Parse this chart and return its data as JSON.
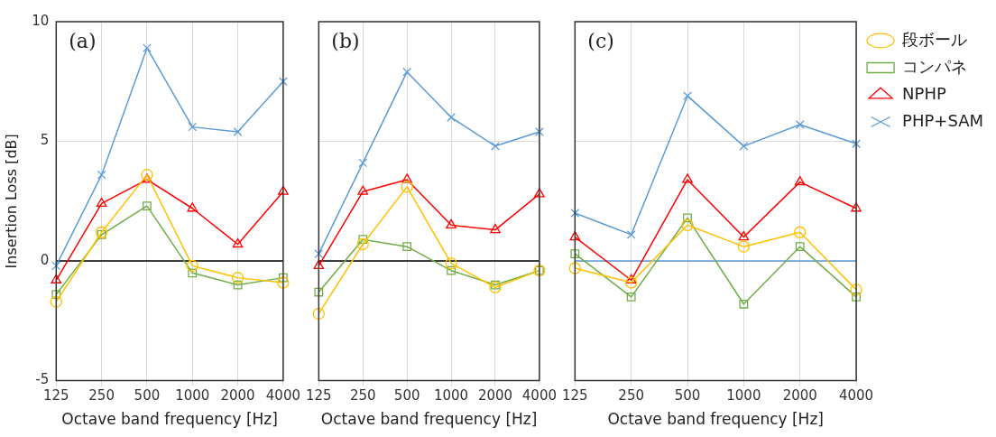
{
  "chart_data": [
    {
      "type": "line",
      "annotations": [
        "(a)"
      ],
      "xlabel": "Octave band frequency [Hz]",
      "ylabel": "Insertion Loss [dB]",
      "categories": [
        "125",
        "250",
        "500",
        "1000",
        "2000",
        "4000"
      ],
      "ylim": [
        -5,
        10
      ],
      "yticks": [
        -5,
        0,
        5,
        10
      ],
      "grid": true,
      "legend": false,
      "ref_lines": [
        {
          "axis": "y",
          "value": 0,
          "color": "#000000"
        }
      ],
      "series": [
        {
          "color": "#ffc000",
          "marker": "circle",
          "values": [
            -1.7,
            1.2,
            3.6,
            -0.2,
            -0.7,
            -0.9
          ]
        },
        {
          "color": "#70ad47",
          "marker": "square",
          "values": [
            -1.4,
            1.1,
            2.3,
            -0.5,
            -1.0,
            -0.7
          ]
        },
        {
          "color": "#ff0000",
          "marker": "triangle",
          "values": [
            -0.8,
            2.4,
            3.4,
            2.2,
            0.7,
            2.9
          ]
        },
        {
          "color": "#5b9bd5",
          "marker": "cross",
          "values": [
            -0.2,
            3.6,
            8.9,
            5.6,
            5.4,
            7.5
          ]
        }
      ]
    },
    {
      "type": "line",
      "annotations": [
        "(b)"
      ],
      "xlabel": "Octave band frequency [Hz]",
      "categories": [
        "125",
        "250",
        "500",
        "1000",
        "2000",
        "4000"
      ],
      "ylim": [
        -5,
        10
      ],
      "yticks": [
        -5,
        0,
        5,
        10
      ],
      "tick_labels": "x",
      "grid": true,
      "legend": false,
      "ref_lines": [
        {
          "axis": "y",
          "value": 0,
          "color": "#000000"
        }
      ],
      "series": [
        {
          "color": "#ffc000",
          "marker": "circle",
          "values": [
            -2.2,
            0.7,
            3.1,
            -0.1,
            -1.1,
            -0.4
          ]
        },
        {
          "color": "#70ad47",
          "marker": "square",
          "values": [
            -1.3,
            0.9,
            0.6,
            -0.4,
            -1.0,
            -0.4
          ]
        },
        {
          "color": "#ff0000",
          "marker": "triangle",
          "values": [
            -0.2,
            2.9,
            3.4,
            1.5,
            1.3,
            2.8
          ]
        },
        {
          "color": "#5b9bd5",
          "marker": "cross",
          "values": [
            0.3,
            4.1,
            7.9,
            6.0,
            4.8,
            5.4
          ]
        }
      ]
    },
    {
      "type": "line",
      "annotations": [
        "(c)"
      ],
      "xlabel": "Octave band frequency [Hz]",
      "categories": [
        "125",
        "250",
        "500",
        "1000",
        "2000",
        "4000"
      ],
      "ylim": [
        -5,
        10
      ],
      "yticks": [
        -5,
        0,
        5,
        10
      ],
      "tick_labels": "x",
      "grid": true,
      "legend": "top right",
      "ref_lines": [
        {
          "axis": "y",
          "value": 0,
          "color": "#5b9bd5"
        }
      ],
      "series": [
        {
          "name": "段ボール",
          "color": "#ffc000",
          "marker": "circle",
          "values": [
            -0.3,
            -0.9,
            1.5,
            0.6,
            1.2,
            -1.2
          ]
        },
        {
          "name": "コンパネ",
          "color": "#70ad47",
          "marker": "square",
          "values": [
            0.3,
            -1.5,
            1.8,
            -1.8,
            0.6,
            -1.5
          ]
        },
        {
          "name": "NPHP",
          "color": "#ff0000",
          "marker": "triangle",
          "values": [
            1.0,
            -0.8,
            3.4,
            1.0,
            3.3,
            2.2
          ]
        },
        {
          "name": "PHP+SAM",
          "color": "#5b9bd5",
          "marker": "cross",
          "values": [
            2.0,
            1.1,
            6.9,
            4.8,
            5.7,
            4.9
          ]
        }
      ]
    }
  ]
}
